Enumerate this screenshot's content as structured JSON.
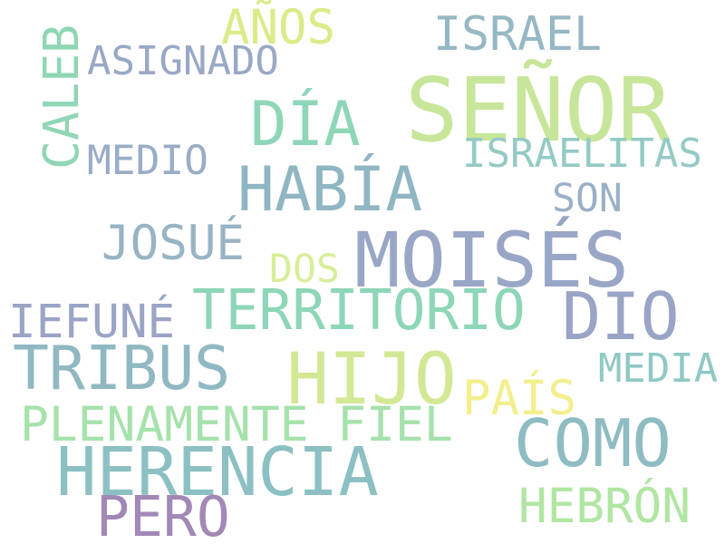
{
  "word_cloud": {
    "words": [
      {
        "text": "SEÑOR",
        "color": "#c8e69a"
      },
      {
        "text": "MOISÉS",
        "color": "#9aa6c6"
      },
      {
        "text": "HIJO",
        "color": "#d3e894"
      },
      {
        "text": "HERENCIA",
        "color": "#8cc0c2"
      },
      {
        "text": "TRIBUS",
        "color": "#90b8c2"
      },
      {
        "text": "DIO",
        "color": "#9aa4c6"
      },
      {
        "text": "COMO",
        "color": "#8ebcc2"
      },
      {
        "text": "HABÍA",
        "color": "#8fb6c2"
      },
      {
        "text": "DÍA",
        "color": "#8fd6b8"
      },
      {
        "text": "TERRITORIO",
        "color": "#8ed6b8"
      },
      {
        "text": "PLENAMENTE FIEL",
        "color": "#a6e2ac"
      },
      {
        "text": "CALEB",
        "color": "#8fd6b4"
      },
      {
        "text": "JOSUÉ",
        "color": "#98b4c4"
      },
      {
        "text": "ISRAEL",
        "color": "#96b8c4"
      },
      {
        "text": "PERO",
        "color": "#a288b6"
      },
      {
        "text": "IEFUNÉ",
        "color": "#9aa4c6"
      },
      {
        "text": "PAÍS",
        "color": "#f3ef8e"
      },
      {
        "text": "HEBRÓN",
        "color": "#b0e6a2"
      },
      {
        "text": "AÑOS",
        "color": "#dcea88"
      },
      {
        "text": "ISRAELITAS",
        "color": "#94cac4"
      },
      {
        "text": "ASIGNADO",
        "color": "#9aa8c6"
      },
      {
        "text": "MEDIO",
        "color": "#9aacc6"
      },
      {
        "text": "MEDIA",
        "color": "#90c8c4"
      },
      {
        "text": "SON",
        "color": "#9ab0c6"
      },
      {
        "text": "DOS",
        "color": "#d8ee9a"
      }
    ]
  }
}
